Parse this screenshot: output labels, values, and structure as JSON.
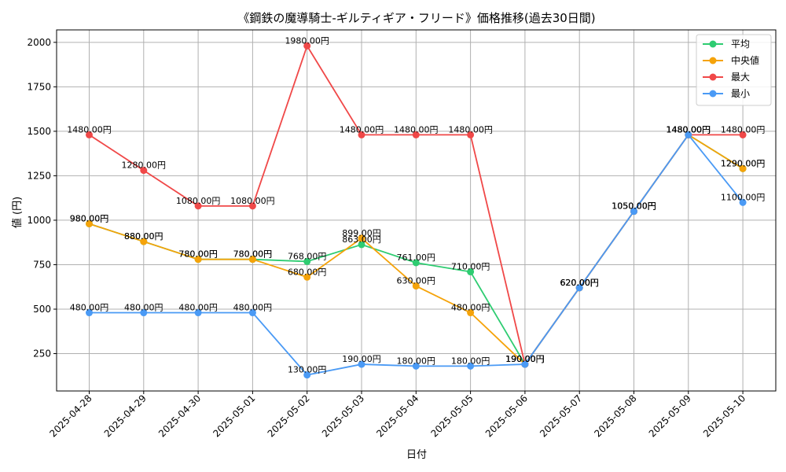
{
  "chart_data": {
    "type": "line",
    "title": "《鋼鉄の魔導騎士-ギルティギア・フリード》価格推移(過去30日間)",
    "xlabel": "日付",
    "ylabel": "値 (円)",
    "categories": [
      "2025-04-28",
      "2025-04-29",
      "2025-04-30",
      "2025-05-01",
      "2025-05-02",
      "2025-05-03",
      "2025-05-04",
      "2025-05-05",
      "2025-05-06",
      "2025-05-07",
      "2025-05-08",
      "2025-05-09",
      "2025-05-10"
    ],
    "ylim": [
      40,
      2070
    ],
    "yticks": [
      250,
      500,
      750,
      1000,
      1250,
      1500,
      1750,
      2000
    ],
    "grid": true,
    "legend_position": "top-right",
    "value_suffix": "円",
    "series": [
      {
        "name": "平均",
        "color": "#2ecc71",
        "values": [
          980,
          880,
          780,
          780,
          768,
          863,
          761,
          710,
          190,
          620,
          1050,
          1480,
          1290
        ]
      },
      {
        "name": "中央値",
        "color": "#f5a30a",
        "values": [
          980,
          880,
          780,
          780,
          680,
          899,
          630,
          480,
          190,
          620,
          1050,
          1480,
          1290
        ]
      },
      {
        "name": "最大",
        "color": "#f04848",
        "values": [
          1480,
          1280,
          1080,
          1080,
          1980,
          1480,
          1480,
          1480,
          190,
          620,
          1050,
          1480,
          1480
        ]
      },
      {
        "name": "最小",
        "color": "#4a9af5",
        "values": [
          480,
          480,
          480,
          480,
          130,
          190,
          180,
          180,
          190,
          620,
          1050,
          1480,
          1100
        ]
      }
    ]
  }
}
